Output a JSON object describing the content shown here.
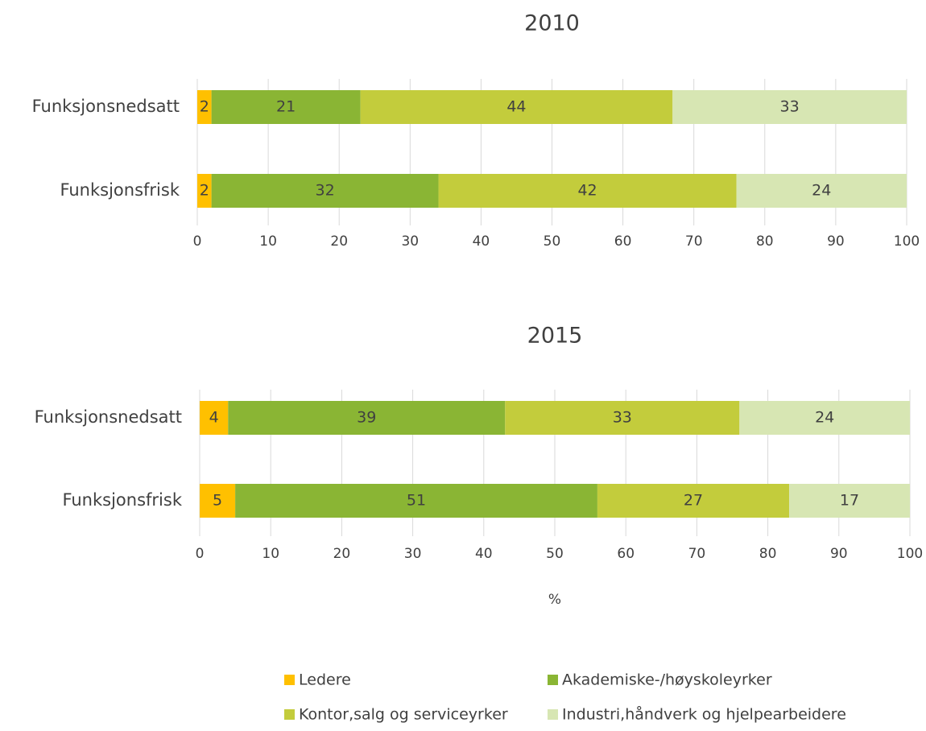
{
  "chart_data": [
    {
      "type": "stacked-bar-horizontal",
      "title": "2010",
      "categories": [
        "Funksjonsnedsatt",
        "Funksjonsfrisk"
      ],
      "series": [
        {
          "name": "Ledere",
          "color": "#ffc000",
          "values": [
            2,
            2
          ]
        },
        {
          "name": "Akademiske-/høyskoleyrker",
          "color": "#8ab534",
          "values": [
            21,
            32
          ]
        },
        {
          "name": "Kontor,salg og serviceyrker",
          "color": "#c3cc3c",
          "values": [
            44,
            42
          ]
        },
        {
          "name": "Industri,håndverk og hjelpearbeidere",
          "color": "#d7e6b3",
          "values": [
            33,
            24
          ]
        }
      ],
      "xlim": [
        0,
        100
      ],
      "xticks": [
        0,
        10,
        20,
        30,
        40,
        50,
        60,
        70,
        80,
        90,
        100
      ],
      "grid": true
    },
    {
      "type": "stacked-bar-horizontal",
      "title": "2015",
      "x_label": "%",
      "categories": [
        "Funksjonsnedsatt",
        "Funksjonsfrisk"
      ],
      "series": [
        {
          "color": "#ffc000",
          "values": [
            4,
            5
          ]
        },
        {
          "color": "#8ab534",
          "values": [
            39,
            51
          ]
        },
        {
          "color": "#c3cc3c",
          "values": [
            33,
            27
          ]
        },
        {
          "color": "#d7e6b3",
          "values": [
            24,
            17
          ]
        }
      ],
      "xlim": [
        0,
        100
      ],
      "xticks": [
        0,
        10,
        20,
        30,
        40,
        50,
        60,
        70,
        80,
        90,
        100
      ],
      "grid": true
    }
  ]
}
